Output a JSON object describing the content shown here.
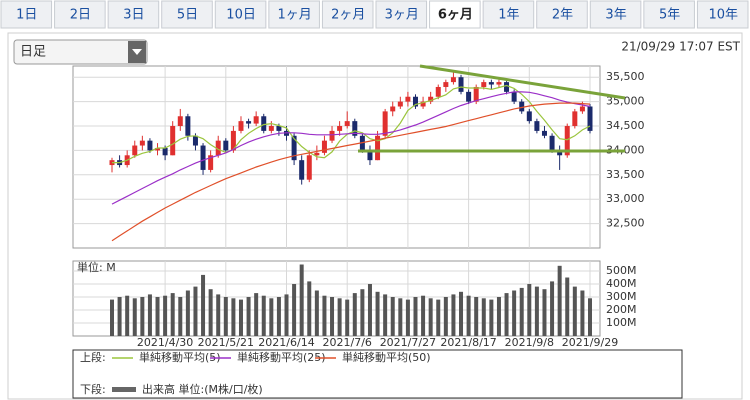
{
  "tabs": [
    "1日",
    "2日",
    "3日",
    "5日",
    "10日",
    "1ヶ月",
    "2ヶ月",
    "3ヶ月",
    "6ヶ月",
    "1年",
    "2年",
    "3年",
    "5年",
    "10年"
  ],
  "dropdown": "日足",
  "timestamp": "21/09/29 17:07 EST",
  "legend": {
    "upper_label": "上段:",
    "lower_label": "下段:"
  },
  "chart_data": [
    {
      "type": "candlestick",
      "up_color": "#e0302f",
      "down_color": "#1b2a6b",
      "grid": true,
      "open": [
        33700,
        33800,
        33700,
        33900,
        34100,
        34200,
        34000,
        34050,
        33900,
        34500,
        34700,
        34300,
        34100,
        33600,
        33900,
        34200,
        34000,
        34400,
        34600,
        34550,
        34700,
        34400,
        34500,
        34400,
        34300,
        33800,
        33400,
        33900,
        33950,
        34200,
        34400,
        34500,
        34600,
        34300,
        34000,
        33800,
        34300,
        34800,
        34900,
        35000,
        35100,
        34900,
        35000,
        35100,
        35300,
        35400,
        35500,
        35200,
        35000,
        35300,
        35400,
        35350,
        35400,
        35200,
        35000,
        34800,
        34600,
        34400,
        34300,
        34000,
        33900,
        34500,
        34800,
        34900
      ],
      "high": [
        33850,
        33900,
        34000,
        34200,
        34300,
        34250,
        34150,
        34100,
        34600,
        34850,
        34750,
        34350,
        34150,
        34000,
        34300,
        34250,
        34500,
        34700,
        34650,
        34800,
        34750,
        34600,
        34550,
        34500,
        34350,
        33900,
        34000,
        34100,
        34300,
        34500,
        34600,
        34800,
        34650,
        34350,
        34100,
        34400,
        34850,
        35000,
        35100,
        35200,
        35150,
        35100,
        35200,
        35350,
        35450,
        35630,
        35550,
        35250,
        35350,
        35450,
        35450,
        35450,
        35420,
        35250,
        35050,
        34850,
        34650,
        34500,
        34350,
        34100,
        34550,
        34850,
        35000,
        34950
      ],
      "low": [
        33550,
        33650,
        33650,
        33850,
        34000,
        33950,
        33900,
        33800,
        33900,
        34400,
        34200,
        34000,
        33500,
        33550,
        33850,
        33950,
        33950,
        34350,
        34450,
        34500,
        34350,
        34350,
        34300,
        34200,
        33700,
        33300,
        33350,
        33800,
        33900,
        34150,
        34300,
        34450,
        34250,
        33950,
        33700,
        33800,
        34250,
        34700,
        34850,
        34900,
        34850,
        34850,
        34950,
        35050,
        35200,
        35350,
        35150,
        34950,
        34950,
        35250,
        35250,
        35300,
        35150,
        34950,
        34750,
        34550,
        34350,
        34250,
        33950,
        33600,
        33850,
        34450,
        34750,
        34350
      ],
      "close": [
        33800,
        33700,
        33900,
        34100,
        34200,
        34000,
        34050,
        33900,
        34500,
        34700,
        34300,
        34100,
        33600,
        33900,
        34200,
        34000,
        34400,
        34600,
        34550,
        34700,
        34400,
        34500,
        34400,
        34300,
        33800,
        33400,
        33900,
        33950,
        34200,
        34400,
        34500,
        34600,
        34300,
        34000,
        33800,
        34300,
        34800,
        34900,
        35000,
        35100,
        34900,
        35000,
        35100,
        35300,
        35400,
        35500,
        35200,
        35000,
        35300,
        35400,
        35350,
        35400,
        35200,
        35000,
        34800,
        34600,
        34400,
        34300,
        34000,
        33900,
        34500,
        34800,
        34900,
        34400
      ],
      "series": [
        {
          "name": "単純移動平均(5)",
          "color": "#9bc53d",
          "values": [
            33750,
            33750,
            33800,
            33880,
            33940,
            33980,
            34050,
            34050,
            34130,
            34230,
            34290,
            34300,
            34240,
            34120,
            34020,
            33960,
            34020,
            34220,
            34350,
            34450,
            34530,
            34550,
            34510,
            34460,
            34240,
            34080,
            33960,
            33870,
            33850,
            33970,
            34190,
            34330,
            34400,
            34360,
            34240,
            34200,
            34240,
            34360,
            34560,
            34820,
            34940,
            34980,
            35020,
            35080,
            35140,
            35260,
            35300,
            35280,
            35280,
            35280,
            35250,
            35290,
            35330,
            35270,
            35150,
            35000,
            34800,
            34620,
            34420,
            34240,
            34220,
            34300,
            34420,
            34500
          ]
        },
        {
          "name": "単純移動平均(25)",
          "color": "#9b30c8",
          "values": [
            32900,
            32980,
            33060,
            33140,
            33220,
            33300,
            33380,
            33450,
            33520,
            33600,
            33670,
            33740,
            33800,
            33850,
            33900,
            33950,
            34020,
            34100,
            34170,
            34230,
            34280,
            34320,
            34350,
            34360,
            34360,
            34350,
            34330,
            34320,
            34320,
            34320,
            34330,
            34340,
            34350,
            34340,
            34330,
            34330,
            34350,
            34380,
            34420,
            34470,
            34520,
            34580,
            34650,
            34720,
            34790,
            34860,
            34920,
            34970,
            35020,
            35060,
            35100,
            35140,
            35170,
            35200,
            35200,
            35190,
            35160,
            35120,
            35080,
            35030,
            34990,
            34960,
            34930,
            34900
          ]
        },
        {
          "name": "単純移動平均(50)",
          "color": "#e0502a",
          "values": [
            32150,
            32250,
            32350,
            32450,
            32550,
            32640,
            32730,
            32820,
            32900,
            32980,
            33060,
            33140,
            33210,
            33280,
            33350,
            33420,
            33480,
            33540,
            33600,
            33660,
            33710,
            33760,
            33810,
            33850,
            33890,
            33920,
            33950,
            33980,
            34010,
            34040,
            34070,
            34100,
            34130,
            34160,
            34190,
            34220,
            34250,
            34280,
            34310,
            34340,
            34370,
            34400,
            34430,
            34460,
            34490,
            34530,
            34570,
            34610,
            34650,
            34690,
            34730,
            34770,
            34810,
            34850,
            34880,
            34910,
            34930,
            34950,
            34960,
            34970,
            34970,
            34970,
            34960,
            34950
          ]
        }
      ],
      "ylim": [
        32000,
        35730
      ],
      "yticks": [
        {
          "value": 32500,
          "label": "32,500"
        },
        {
          "value": 33000,
          "label": "33,000"
        },
        {
          "value": 33500,
          "label": "33,500"
        },
        {
          "value": 34000,
          "label": "34,000"
        },
        {
          "value": 34500,
          "label": "34,500"
        },
        {
          "value": 35000,
          "label": "35,000"
        },
        {
          "value": 35500,
          "label": "35,500"
        }
      ]
    },
    {
      "type": "bar",
      "name": "出来高 単位:(M株/口/枚)",
      "unit_label": "単位: M",
      "color": "#555555",
      "grid": true,
      "categories": [
        null,
        null,
        null,
        null,
        null,
        null,
        null,
        "2021/4/30",
        null,
        null,
        null,
        null,
        null,
        null,
        null,
        "2021/5/21",
        null,
        null,
        null,
        null,
        null,
        null,
        null,
        "2021/6/14",
        null,
        null,
        null,
        null,
        null,
        null,
        null,
        "2021/7/6",
        null,
        null,
        null,
        null,
        null,
        null,
        null,
        "2021/7/27",
        null,
        null,
        null,
        null,
        null,
        null,
        null,
        "2021/8/17",
        null,
        null,
        null,
        null,
        null,
        null,
        null,
        "2021/9/8",
        null,
        null,
        null,
        null,
        null,
        null,
        null,
        "2021/9/29"
      ],
      "values": [
        280,
        300,
        310,
        290,
        300,
        320,
        300,
        310,
        330,
        300,
        350,
        380,
        470,
        360,
        320,
        300,
        290,
        280,
        300,
        330,
        310,
        290,
        300,
        320,
        400,
        550,
        420,
        350,
        310,
        300,
        290,
        280,
        330,
        360,
        400,
        340,
        320,
        300,
        290,
        280,
        300,
        310,
        290,
        280,
        300,
        320,
        340,
        310,
        300,
        290,
        280,
        300,
        330,
        350,
        370,
        400,
        380,
        360,
        420,
        540,
        450,
        380,
        350,
        290
      ],
      "ylim": [
        0,
        577
      ],
      "yticks": [
        {
          "value": 100,
          "label": "100M"
        },
        {
          "value": 200,
          "label": "200M"
        },
        {
          "value": 300,
          "label": "300M"
        },
        {
          "value": 400,
          "label": "400M"
        },
        {
          "value": 500,
          "label": "500M"
        }
      ]
    }
  ]
}
